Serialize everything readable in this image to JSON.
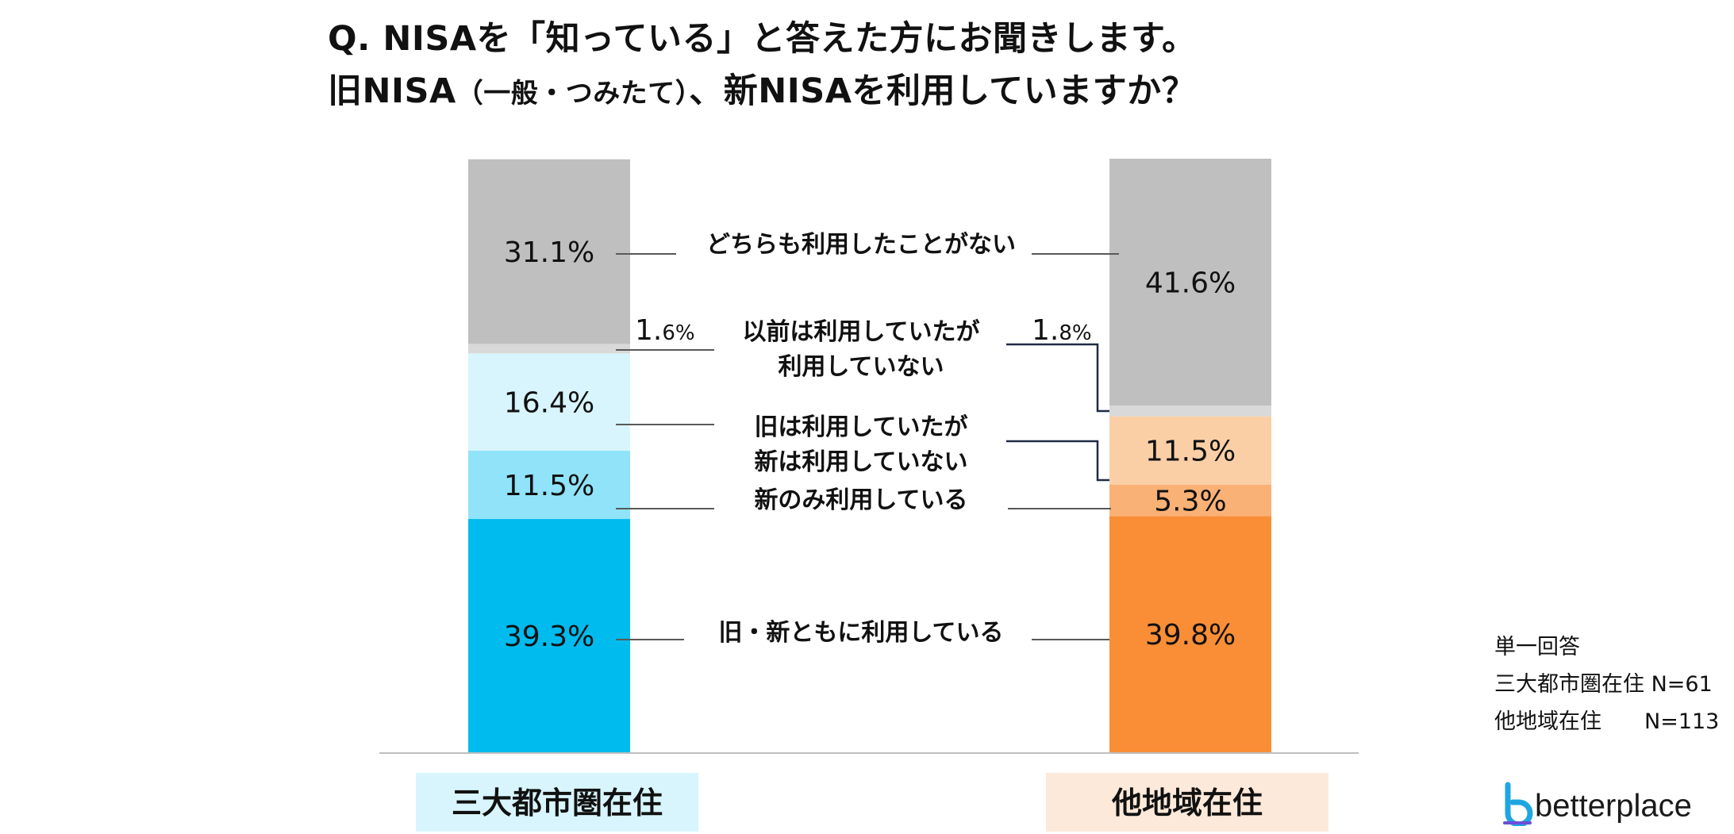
{
  "title_line1": "Q. NISAを「知っている」と答えた方にお聞きします。",
  "title_line2_a": "旧NISA",
  "title_line2_b": "（一般・つみたて）",
  "title_line2_c": "、新NISAを利用していますか？",
  "notes": [
    "単一回答",
    "三大都市圏在住 N=61",
    "他地域在住　　N=113"
  ],
  "logo_text": "betterplace",
  "colors": {
    "group1": [
      "#00bbee",
      "#90e3f9",
      "#d8f5fd",
      "#d9d9d9",
      "#bfbfbf"
    ],
    "group2": [
      "#f98e36",
      "#fab176",
      "#fbcfa6",
      "#d9d9d9",
      "#bfbfbf"
    ],
    "group1_label_bg": "#d8f5fd",
    "group2_label_bg": "#fde9d9",
    "leader": "#595959",
    "leader_dark": "#1f2a44"
  },
  "chart_data": {
    "type": "bar",
    "stacked": true,
    "categories": [
      "三大都市圏在住",
      "他地域在住"
    ],
    "series": [
      {
        "name": "旧・新ともに利用している",
        "values": [
          39.3,
          39.8
        ]
      },
      {
        "name": "新のみ利用している",
        "values": [
          11.5,
          5.3
        ]
      },
      {
        "name": "旧は利用していたが\n新は利用していない",
        "values": [
          16.4,
          11.5
        ]
      },
      {
        "name": "以前は利用していたが\n利用していない",
        "values": [
          1.6,
          1.8
        ]
      },
      {
        "name": "どちらも利用したことがない",
        "values": [
          31.1,
          41.6
        ]
      }
    ],
    "ylim": [
      0,
      100
    ],
    "value_labels": [
      [
        "39.3%",
        "39.8%"
      ],
      [
        "11.5%",
        "5.3%"
      ],
      [
        "16.4%",
        "11.5%"
      ],
      [
        "1.6%",
        "1.8%"
      ],
      [
        "31.1%",
        "41.6%"
      ]
    ]
  }
}
